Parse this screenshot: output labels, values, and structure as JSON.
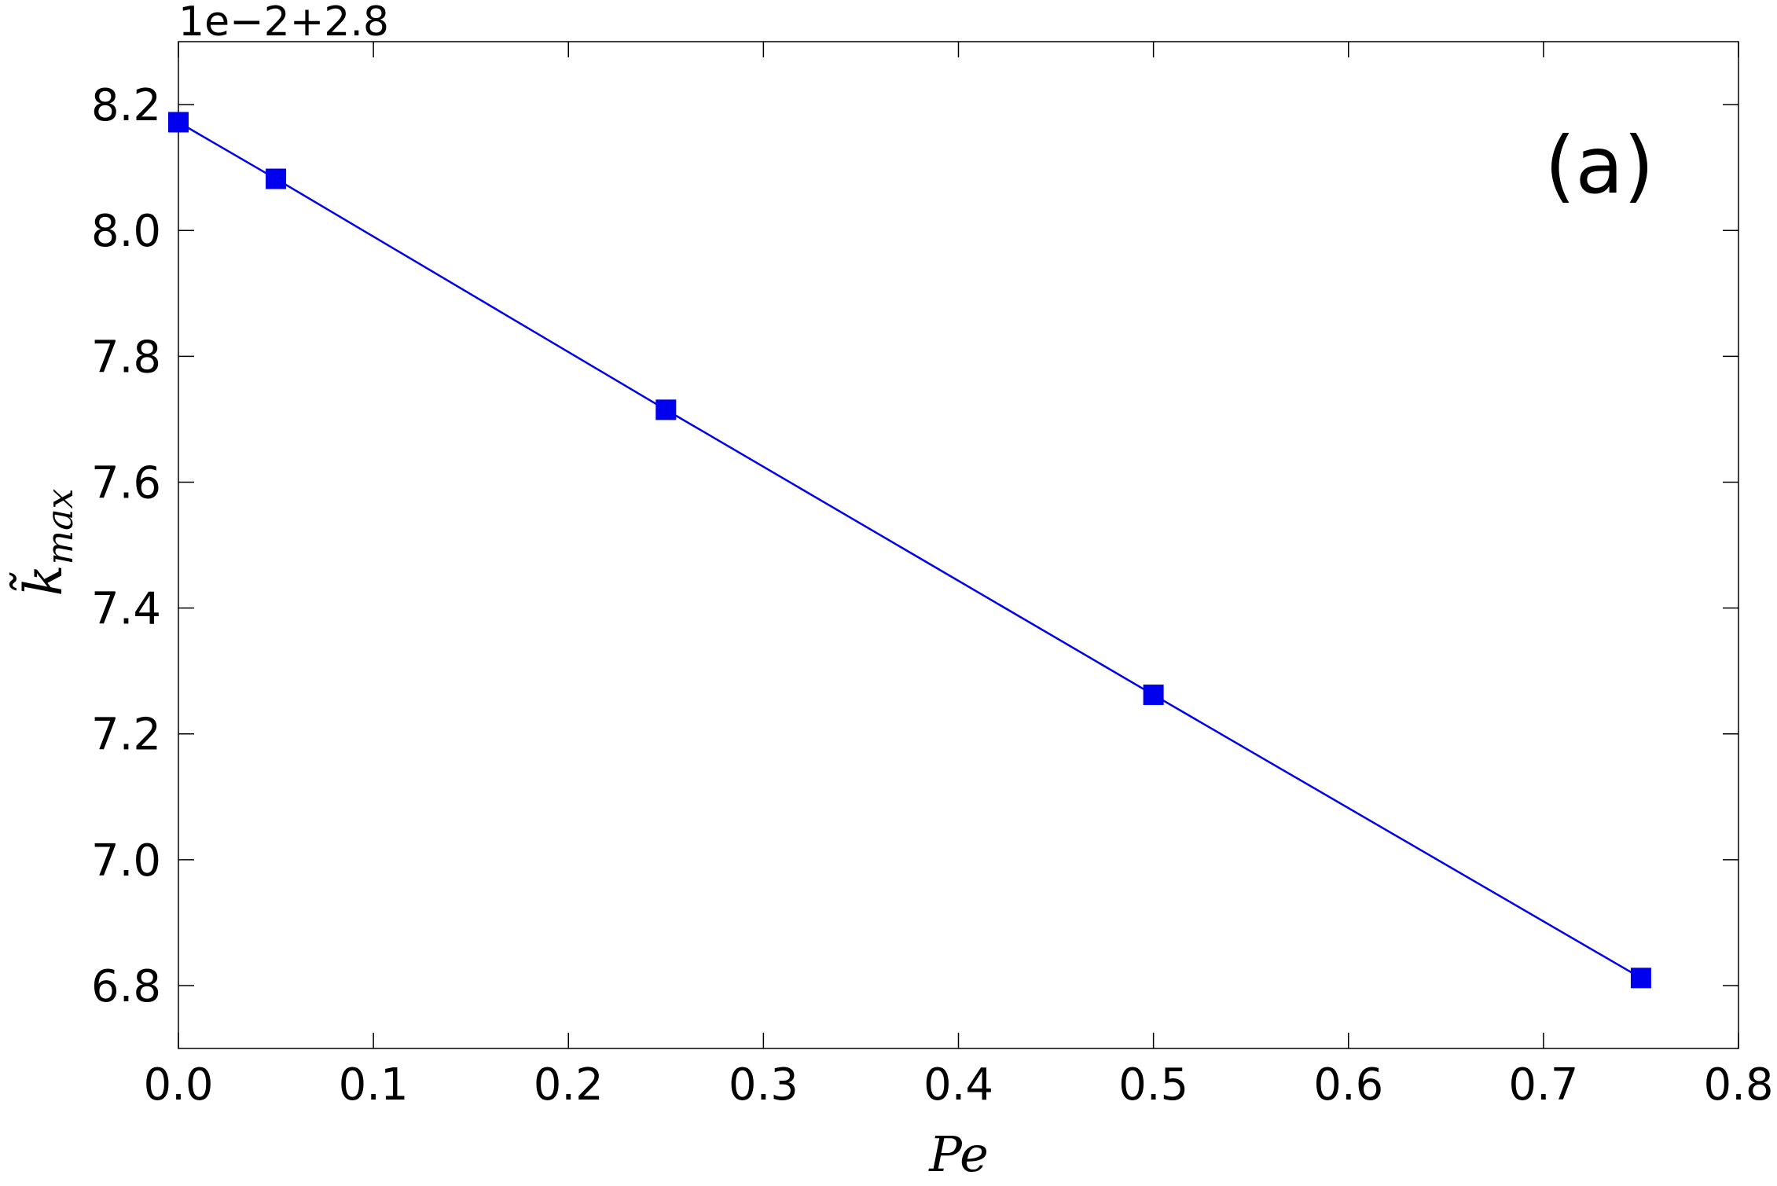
{
  "chart_data": {
    "type": "line",
    "offset_text": "1e−2+2.8",
    "annotation": "(a)",
    "xlabel": "Pe",
    "ylabel": {
      "base": "k̃",
      "subscript": "max"
    },
    "x": [
      0,
      0.05,
      0.25,
      0.5,
      0.75
    ],
    "series": [
      {
        "color": "#0000ee",
        "marker": "square",
        "values": [
          8.172,
          8.082,
          7.715,
          7.262,
          6.812
        ]
      }
    ],
    "xlim": [
      0,
      0.8
    ],
    "xticks": [
      {
        "value": 0,
        "label": "0.0"
      },
      0.1,
      0.2,
      0.3,
      0.4,
      0.5,
      0.6,
      0.7,
      0.8
    ],
    "ylim": [
      6.7,
      8.3
    ],
    "yticks": [
      6.8,
      {
        "value": 7,
        "label": "7.0"
      },
      7.2,
      7.4,
      7.6,
      7.8,
      {
        "value": 8,
        "label": "8.0"
      },
      8.2
    ],
    "grid": false
  }
}
